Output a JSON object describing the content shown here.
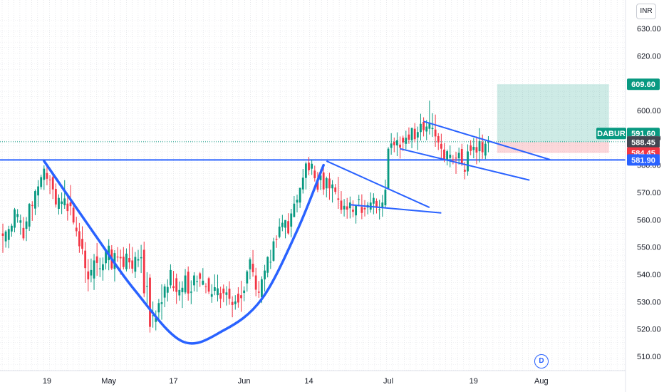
{
  "currency": "INR",
  "symbol": "DABUR",
  "event_badge": "D",
  "chart_data": {
    "type": "candlestick",
    "y_axis": {
      "ticks": [
        510,
        520,
        530,
        540,
        550,
        560,
        570,
        580,
        590,
        600,
        620,
        630
      ],
      "tick_labels": [
        "510.00",
        "520.00",
        "530.00",
        "540.00",
        "550.00",
        "560.00",
        "570.00",
        "580.00",
        "590.00",
        "600.00",
        "620.00",
        "630.00"
      ],
      "range": [
        507,
        634
      ],
      "position": "right",
      "grid": true
    },
    "x_axis": {
      "ticks": [
        {
          "label": "19",
          "index": 15
        },
        {
          "label": "May",
          "index": 36
        },
        {
          "label": "17",
          "index": 58
        },
        {
          "label": "Jun",
          "index": 82
        },
        {
          "label": "14",
          "index": 104
        },
        {
          "label": "Jul",
          "index": 131
        },
        {
          "label": "19",
          "index": 160
        },
        {
          "label": "Aug",
          "index": 183
        }
      ],
      "grid": true,
      "visible_index_range": [
        0,
        218
      ]
    },
    "price_tags": [
      {
        "value": 609.6,
        "label": "609.60",
        "color": "#089981"
      },
      {
        "value": 591.6,
        "label": "591.60",
        "color": "#089981",
        "symbol_label": true
      },
      {
        "value": 588.55,
        "label": "588.55",
        "color": "#787b86"
      },
      {
        "value": 588.45,
        "label": "588.45",
        "color": "#434651"
      },
      {
        "value": 584.45,
        "label": "584.45",
        "color": "#f23645"
      },
      {
        "value": 581.9,
        "label": "581.90",
        "color": "#2962ff"
      }
    ],
    "horizontal_lines": [
      {
        "value": 581.9,
        "color": "#2962ff",
        "style": "solid"
      },
      {
        "value": 588.55,
        "color": "#089981",
        "style": "dotted"
      }
    ],
    "position_tool": {
      "entry": 588.45,
      "target": 609.6,
      "stop": 584.45,
      "start_index": 168,
      "end_index": 206
    },
    "drawings": [
      {
        "type": "curve",
        "color": "#2962ff",
        "points": [
          [
            14,
            581.5
          ],
          [
            31,
            555
          ],
          [
            45,
            534
          ],
          [
            61,
            515.5
          ],
          [
            75,
            519.5
          ],
          [
            88,
            531
          ],
          [
            100,
            556
          ],
          [
            109,
            580
          ]
        ]
      },
      {
        "type": "line",
        "color": "#2962ff",
        "points": [
          [
            110,
            581.5
          ],
          [
            145,
            564.5
          ]
        ]
      },
      {
        "type": "line",
        "color": "#2962ff",
        "points": [
          [
            118,
            565.5
          ],
          [
            149,
            562.5
          ]
        ]
      },
      {
        "type": "line",
        "color": "#2962ff",
        "points": [
          [
            143,
            596
          ],
          [
            186,
            582
          ]
        ]
      },
      {
        "type": "line",
        "color": "#2962ff",
        "points": [
          [
            135,
            586
          ],
          [
            179,
            574.5
          ]
        ]
      }
    ],
    "candles": [
      [
        0,
        555.0,
        558.6,
        547.9,
        554.1
      ],
      [
        1,
        552.1,
        556.2,
        549.8,
        555.7
      ],
      [
        2,
        552.6,
        557.8,
        549.6,
        556.6
      ],
      [
        3,
        555.7,
        558.6,
        553.8,
        557.8
      ],
      [
        4,
        557.1,
        564.3,
        555.4,
        563.8
      ],
      [
        5,
        561.0,
        563.9,
        558.9,
        562.1
      ],
      [
        6,
        558.9,
        561.9,
        554.5,
        559.8
      ],
      [
        7,
        557.0,
        561.0,
        552.4,
        553.2
      ],
      [
        8,
        556.7,
        561.0,
        552.2,
        559.4
      ],
      [
        9,
        557.5,
        566.1,
        555.9,
        565.8
      ],
      [
        10,
        565.4,
        566.8,
        559.6,
        565.0
      ],
      [
        11,
        564.1,
        571.1,
        561.7,
        570.5
      ],
      [
        12,
        568.9,
        574.5,
        564.7,
        572.2
      ],
      [
        13,
        572.0,
        576.5,
        571.1,
        575.6
      ],
      [
        14,
        574.6,
        579.9,
        570.9,
        578.7
      ],
      [
        15,
        577.1,
        580.0,
        572.6,
        575.0
      ],
      [
        16,
        574.7,
        576.3,
        569.4,
        574.5
      ],
      [
        17,
        575.6,
        576.4,
        567.6,
        571.1
      ],
      [
        18,
        571.3,
        573.3,
        564.5,
        565.6
      ],
      [
        19,
        564.0,
        569.3,
        561.9,
        568.0
      ],
      [
        20,
        565.8,
        570.0,
        562.1,
        566.7
      ],
      [
        21,
        565.3,
        574.5,
        564.0,
        567.8
      ],
      [
        22,
        565.9,
        569.0,
        559.7,
        563.2
      ],
      [
        23,
        566.3,
        572.7,
        561.6,
        565.0
      ],
      [
        24,
        564.4,
        566.7,
        558.3,
        559.0
      ],
      [
        25,
        557.1,
        561.1,
        553.9,
        555.8
      ],
      [
        26,
        555.8,
        558.8,
        547.9,
        550.3
      ],
      [
        27,
        553.0,
        557.6,
        547.3,
        549.4
      ],
      [
        28,
        548.7,
        551.8,
        536.9,
        542.3
      ],
      [
        29,
        541.1,
        545.6,
        533.8,
        538.2
      ],
      [
        30,
        539.6,
        545.8,
        537.1,
        541.6
      ],
      [
        31,
        538.5,
        547.5,
        534.3,
        545.1
      ],
      [
        32,
        546.6,
        551.5,
        539.5,
        544.2
      ],
      [
        33,
        542.2,
        546.1,
        539.0,
        542.2
      ],
      [
        34,
        541.5,
        546.2,
        537.7,
        543.7
      ],
      [
        35,
        544.1,
        548.8,
        541.8,
        548.7
      ],
      [
        36,
        545.2,
        552.9,
        541.5,
        550.5
      ],
      [
        37,
        549.1,
        550.7,
        541.6,
        542.2
      ],
      [
        38,
        542.0,
        548.9,
        537.4,
        547.8
      ],
      [
        39,
        546.5,
        550.0,
        544.6,
        546.2
      ],
      [
        40,
        546.4,
        549.1,
        539.9,
        545.9
      ],
      [
        41,
        546.5,
        550.0,
        541.8,
        542.7
      ],
      [
        42,
        541.9,
        549.5,
        541.1,
        547.6
      ],
      [
        43,
        546.0,
        551.3,
        542.0,
        544.4
      ],
      [
        44,
        545.1,
        550.0,
        540.4,
        542.1
      ],
      [
        45,
        541.0,
        548.2,
        538.7,
        546.4
      ],
      [
        46,
        545.1,
        549.0,
        542.7,
        545.6
      ],
      [
        47,
        545.9,
        550.8,
        540.5,
        546.3
      ],
      [
        48,
        549.0,
        552.0,
        531.7,
        533.1
      ],
      [
        49,
        535.7,
        540.8,
        529.2,
        535.8
      ],
      [
        50,
        538.8,
        540.1,
        518.7,
        520.8
      ],
      [
        51,
        525.0,
        530.1,
        520.5,
        525.0
      ],
      [
        52,
        522.6,
        526.8,
        519.5,
        524.1
      ],
      [
        53,
        526.1,
        531.0,
        523.4,
        529.5
      ],
      [
        54,
        529.2,
        536.4,
        523.4,
        529.8
      ],
      [
        55,
        531.5,
        536.5,
        528.0,
        535.6
      ],
      [
        56,
        533.3,
        538.2,
        530.1,
        535.4
      ],
      [
        57,
        536.0,
        543.7,
        534.9,
        541.6
      ],
      [
        58,
        535.7,
        541.3,
        533.8,
        535.0
      ],
      [
        59,
        538.6,
        540.3,
        529.2,
        533.6
      ],
      [
        60,
        532.3,
        537.4,
        530.4,
        534.3
      ],
      [
        61,
        533.5,
        537.5,
        527.7,
        535.1
      ],
      [
        62,
        533.4,
        542.0,
        532.7,
        539.6
      ],
      [
        63,
        541.0,
        542.9,
        530.4,
        533.0
      ],
      [
        64,
        533.3,
        537.8,
        529.1,
        533.7
      ],
      [
        65,
        536.0,
        540.8,
        533.8,
        539.6
      ],
      [
        66,
        537.2,
        539.6,
        533.6,
        537.5
      ],
      [
        67,
        540.4,
        540.9,
        535.4,
        538.4
      ],
      [
        68,
        536.2,
        542.3,
        536.0,
        537.7
      ],
      [
        69,
        535.6,
        536.8,
        533.1,
        535.4
      ],
      [
        70,
        538.6,
        539.1,
        532.8,
        533.7
      ],
      [
        71,
        531.8,
        536.4,
        529.6,
        532.8
      ],
      [
        72,
        534.0,
        540.0,
        532.4,
        535.3
      ],
      [
        73,
        532.4,
        539.9,
        530.1,
        534.9
      ],
      [
        74,
        533.2,
        535.5,
        527.7,
        531.1
      ],
      [
        75,
        534.8,
        536.3,
        529.8,
        533.1
      ],
      [
        76,
        532.5,
        535.7,
        528.6,
        533.4
      ],
      [
        77,
        534.8,
        537.5,
        528.9,
        531.1
      ],
      [
        78,
        529.9,
        532.0,
        524.3,
        528.8
      ],
      [
        79,
        529.1,
        532.4,
        527.1,
        530.1
      ],
      [
        80,
        532.9,
        535.3,
        527.8,
        529.7
      ],
      [
        81,
        532.4,
        537.7,
        526.3,
        531.3
      ],
      [
        82,
        533.2,
        535.6,
        530.2,
        534.1
      ],
      [
        83,
        536.7,
        541.6,
        533.7,
        541.1
      ],
      [
        84,
        541.9,
        546.2,
        538.2,
        545.5
      ],
      [
        85,
        543.9,
        548.9,
        539.2,
        540.8
      ],
      [
        86,
        539.6,
        542.4,
        532.0,
        534.4
      ],
      [
        87,
        533.7,
        537.6,
        531.4,
        533.3
      ],
      [
        88,
        531.6,
        539.3,
        529.5,
        538.2
      ],
      [
        89,
        538.2,
        543.5,
        533.7,
        541.4
      ],
      [
        90,
        540.6,
        546.6,
        538.9,
        546.4
      ],
      [
        91,
        544.5,
        549.0,
        542.0,
        544.6
      ],
      [
        92,
        545.0,
        553.4,
        544.7,
        552.1
      ],
      [
        93,
        553.0,
        554.3,
        549.7,
        552.7
      ],
      [
        94,
        553.7,
        560.5,
        553.2,
        557.5
      ],
      [
        95,
        557.3,
        561.8,
        555.8,
        558.9
      ],
      [
        96,
        557.1,
        559.9,
        553.2,
        559.9
      ],
      [
        97,
        559.5,
        562.4,
        554.5,
        555.0
      ],
      [
        98,
        557.5,
        564.0,
        553.6,
        562.3
      ],
      [
        99,
        561.0,
        568.7,
        560.9,
        565.9
      ],
      [
        100,
        566.3,
        569.2,
        562.7,
        567.3
      ],
      [
        101,
        566.3,
        571.7,
        564.3,
        571.7
      ],
      [
        102,
        571.1,
        578.6,
        569.6,
        575.4
      ],
      [
        103,
        575.3,
        581.3,
        571.1,
        580.6
      ],
      [
        104,
        580.9,
        583.0,
        576.3,
        578.1
      ],
      [
        105,
        578.7,
        582.0,
        576.4,
        580.5
      ],
      [
        106,
        578.0,
        579.8,
        574.0,
        575.2
      ],
      [
        107,
        574.7,
        577.5,
        570.1,
        571.0
      ],
      [
        108,
        574.5,
        578.5,
        570.9,
        576.2
      ],
      [
        109,
        577.3,
        579.9,
        569.1,
        571.1
      ],
      [
        110,
        571.5,
        575.8,
        568.2,
        575.2
      ],
      [
        111,
        575.1,
        577.2,
        567.3,
        571.5
      ],
      [
        112,
        571.5,
        574.5,
        566.3,
        572.9
      ],
      [
        113,
        571.8,
        573.1,
        569.3,
        570.2
      ],
      [
        114,
        567.8,
        575.7,
        564.0,
        567.3
      ],
      [
        115,
        567.0,
        570.5,
        562.2,
        563.6
      ],
      [
        116,
        563.8,
        567.6,
        561.2,
        565.1
      ],
      [
        117,
        564.9,
        568.0,
        560.4,
        563.7
      ],
      [
        118,
        564.2,
        568.5,
        560.5,
        566.3
      ],
      [
        119,
        563.7,
        567.1,
        560.9,
        562.9
      ],
      [
        120,
        561.6,
        565.6,
        558.6,
        565.2
      ],
      [
        121,
        567.5,
        569.1,
        564.9,
        567.6
      ],
      [
        122,
        564.7,
        569.3,
        560.2,
        562.5
      ],
      [
        123,
        564.3,
        567.2,
        561.2,
        563.8
      ],
      [
        124,
        564.5,
        566.5,
        562.0,
        565.4
      ],
      [
        125,
        563.7,
        570.0,
        562.6,
        566.3
      ],
      [
        126,
        565.9,
        569.7,
        562.0,
        568.0
      ],
      [
        127,
        566.9,
        567.8,
        562.3,
        564.4
      ],
      [
        128,
        563.7,
        567.3,
        560.1,
        563.8
      ],
      [
        129,
        564.4,
        569.1,
        561.1,
        566.3
      ],
      [
        130,
        565.3,
        574.7,
        564.4,
        571.0
      ],
      [
        131,
        571.2,
        586.6,
        571.2,
        586.0
      ],
      [
        132,
        586.3,
        591.7,
        583.8,
        587.9
      ],
      [
        133,
        588.5,
        590.1,
        584.7,
        587.3
      ],
      [
        134,
        587.2,
        592.0,
        583.3,
        589.1
      ],
      [
        135,
        587.5,
        590.5,
        582.4,
        586.4
      ],
      [
        136,
        590.0,
        590.8,
        585.2,
        588.3
      ],
      [
        137,
        587.8,
        592.6,
        585.8,
        590.0
      ],
      [
        138,
        591.2,
        593.8,
        587.8,
        589.3
      ],
      [
        139,
        589.1,
        593.7,
        586.2,
        593.6
      ],
      [
        140,
        593.3,
        595.4,
        588.3,
        589.5
      ],
      [
        141,
        590.1,
        594.1,
        585.5,
        592.1
      ],
      [
        142,
        592.1,
        598.8,
        589.0,
        595.1
      ],
      [
        143,
        595.8,
        597.5,
        590.5,
        592.8
      ],
      [
        144,
        592.3,
        596.5,
        589.1,
        594.1
      ],
      [
        145,
        593.3,
        603.6,
        591.2,
        595.5
      ],
      [
        146,
        593.2,
        599.0,
        590.3,
        593.6
      ],
      [
        147,
        593.0,
        598.5,
        586.7,
        590.5
      ],
      [
        148,
        590.6,
        591.7,
        585.5,
        588.3
      ],
      [
        149,
        587.8,
        591.5,
        582.3,
        586.0
      ],
      [
        150,
        585.7,
        588.1,
        581.1,
        581.9
      ],
      [
        151,
        581.9,
        585.7,
        579.9,
        585.1
      ],
      [
        152,
        582.6,
        587.2,
        579.2,
        583.8
      ],
      [
        153,
        582.1,
        583.7,
        580.3,
        581.9
      ],
      [
        154,
        582.7,
        584.9,
        576.8,
        582.6
      ],
      [
        155,
        582.5,
        586.4,
        580.2,
        584.5
      ],
      [
        156,
        585.9,
        587.8,
        579.7,
        580.6
      ],
      [
        157,
        578.3,
        581.2,
        574.8,
        577.6
      ],
      [
        158,
        577.7,
        587.6,
        576.1,
        585.0
      ],
      [
        159,
        587.2,
        589.1,
        583.6,
        585.2
      ],
      [
        160,
        585.5,
        589.9,
        582.5,
        586.7
      ],
      [
        161,
        586.6,
        590.5,
        580.3,
        584.6
      ],
      [
        162,
        585.1,
        593.5,
        581.0,
        588.8
      ],
      [
        163,
        588.4,
        591.2,
        582.3,
        584.7
      ],
      [
        164,
        583.5,
        588.8,
        582.2,
        587.8
      ],
      [
        165,
        588.1,
        590.6,
        584.7,
        588.4
      ]
    ]
  }
}
